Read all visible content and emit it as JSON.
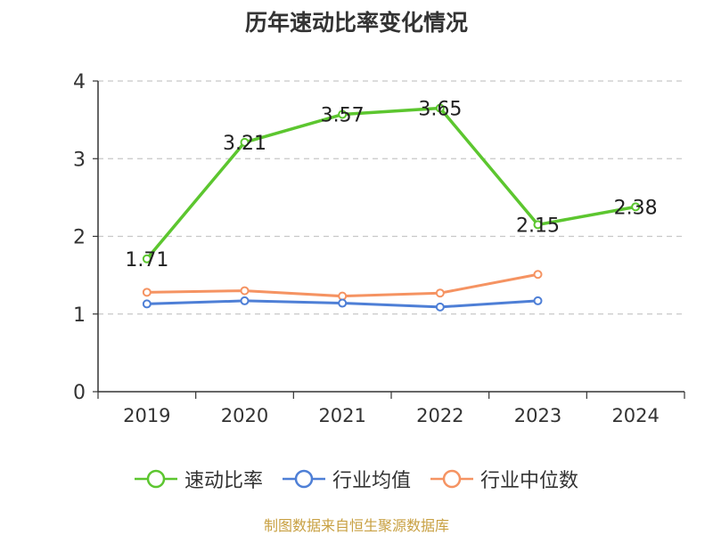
{
  "chart_data": {
    "type": "line",
    "title": "历年速动比率变化情况",
    "categories": [
      "2019",
      "2020",
      "2021",
      "2022",
      "2023",
      "2024"
    ],
    "ylim": [
      0,
      4
    ],
    "yticks": [
      "0",
      "1",
      "2",
      "3",
      "4"
    ],
    "grid": true,
    "legend_position": "bottom",
    "series": [
      {
        "name": "速动比率",
        "color": "#5cc62f",
        "values": [
          1.71,
          3.21,
          3.57,
          3.65,
          2.15,
          2.38
        ],
        "labels": [
          "1.71",
          "3.21",
          "3.57",
          "3.65",
          "2.15",
          "2.38"
        ]
      },
      {
        "name": "行业均值",
        "color": "#4e7fd6",
        "values": [
          1.13,
          1.17,
          1.14,
          1.09,
          1.17,
          null
        ]
      },
      {
        "name": "行业中位数",
        "color": "#f59362",
        "values": [
          1.28,
          1.3,
          1.23,
          1.27,
          1.51,
          null
        ]
      }
    ]
  },
  "source": "制图数据来自恒生聚源数据库"
}
